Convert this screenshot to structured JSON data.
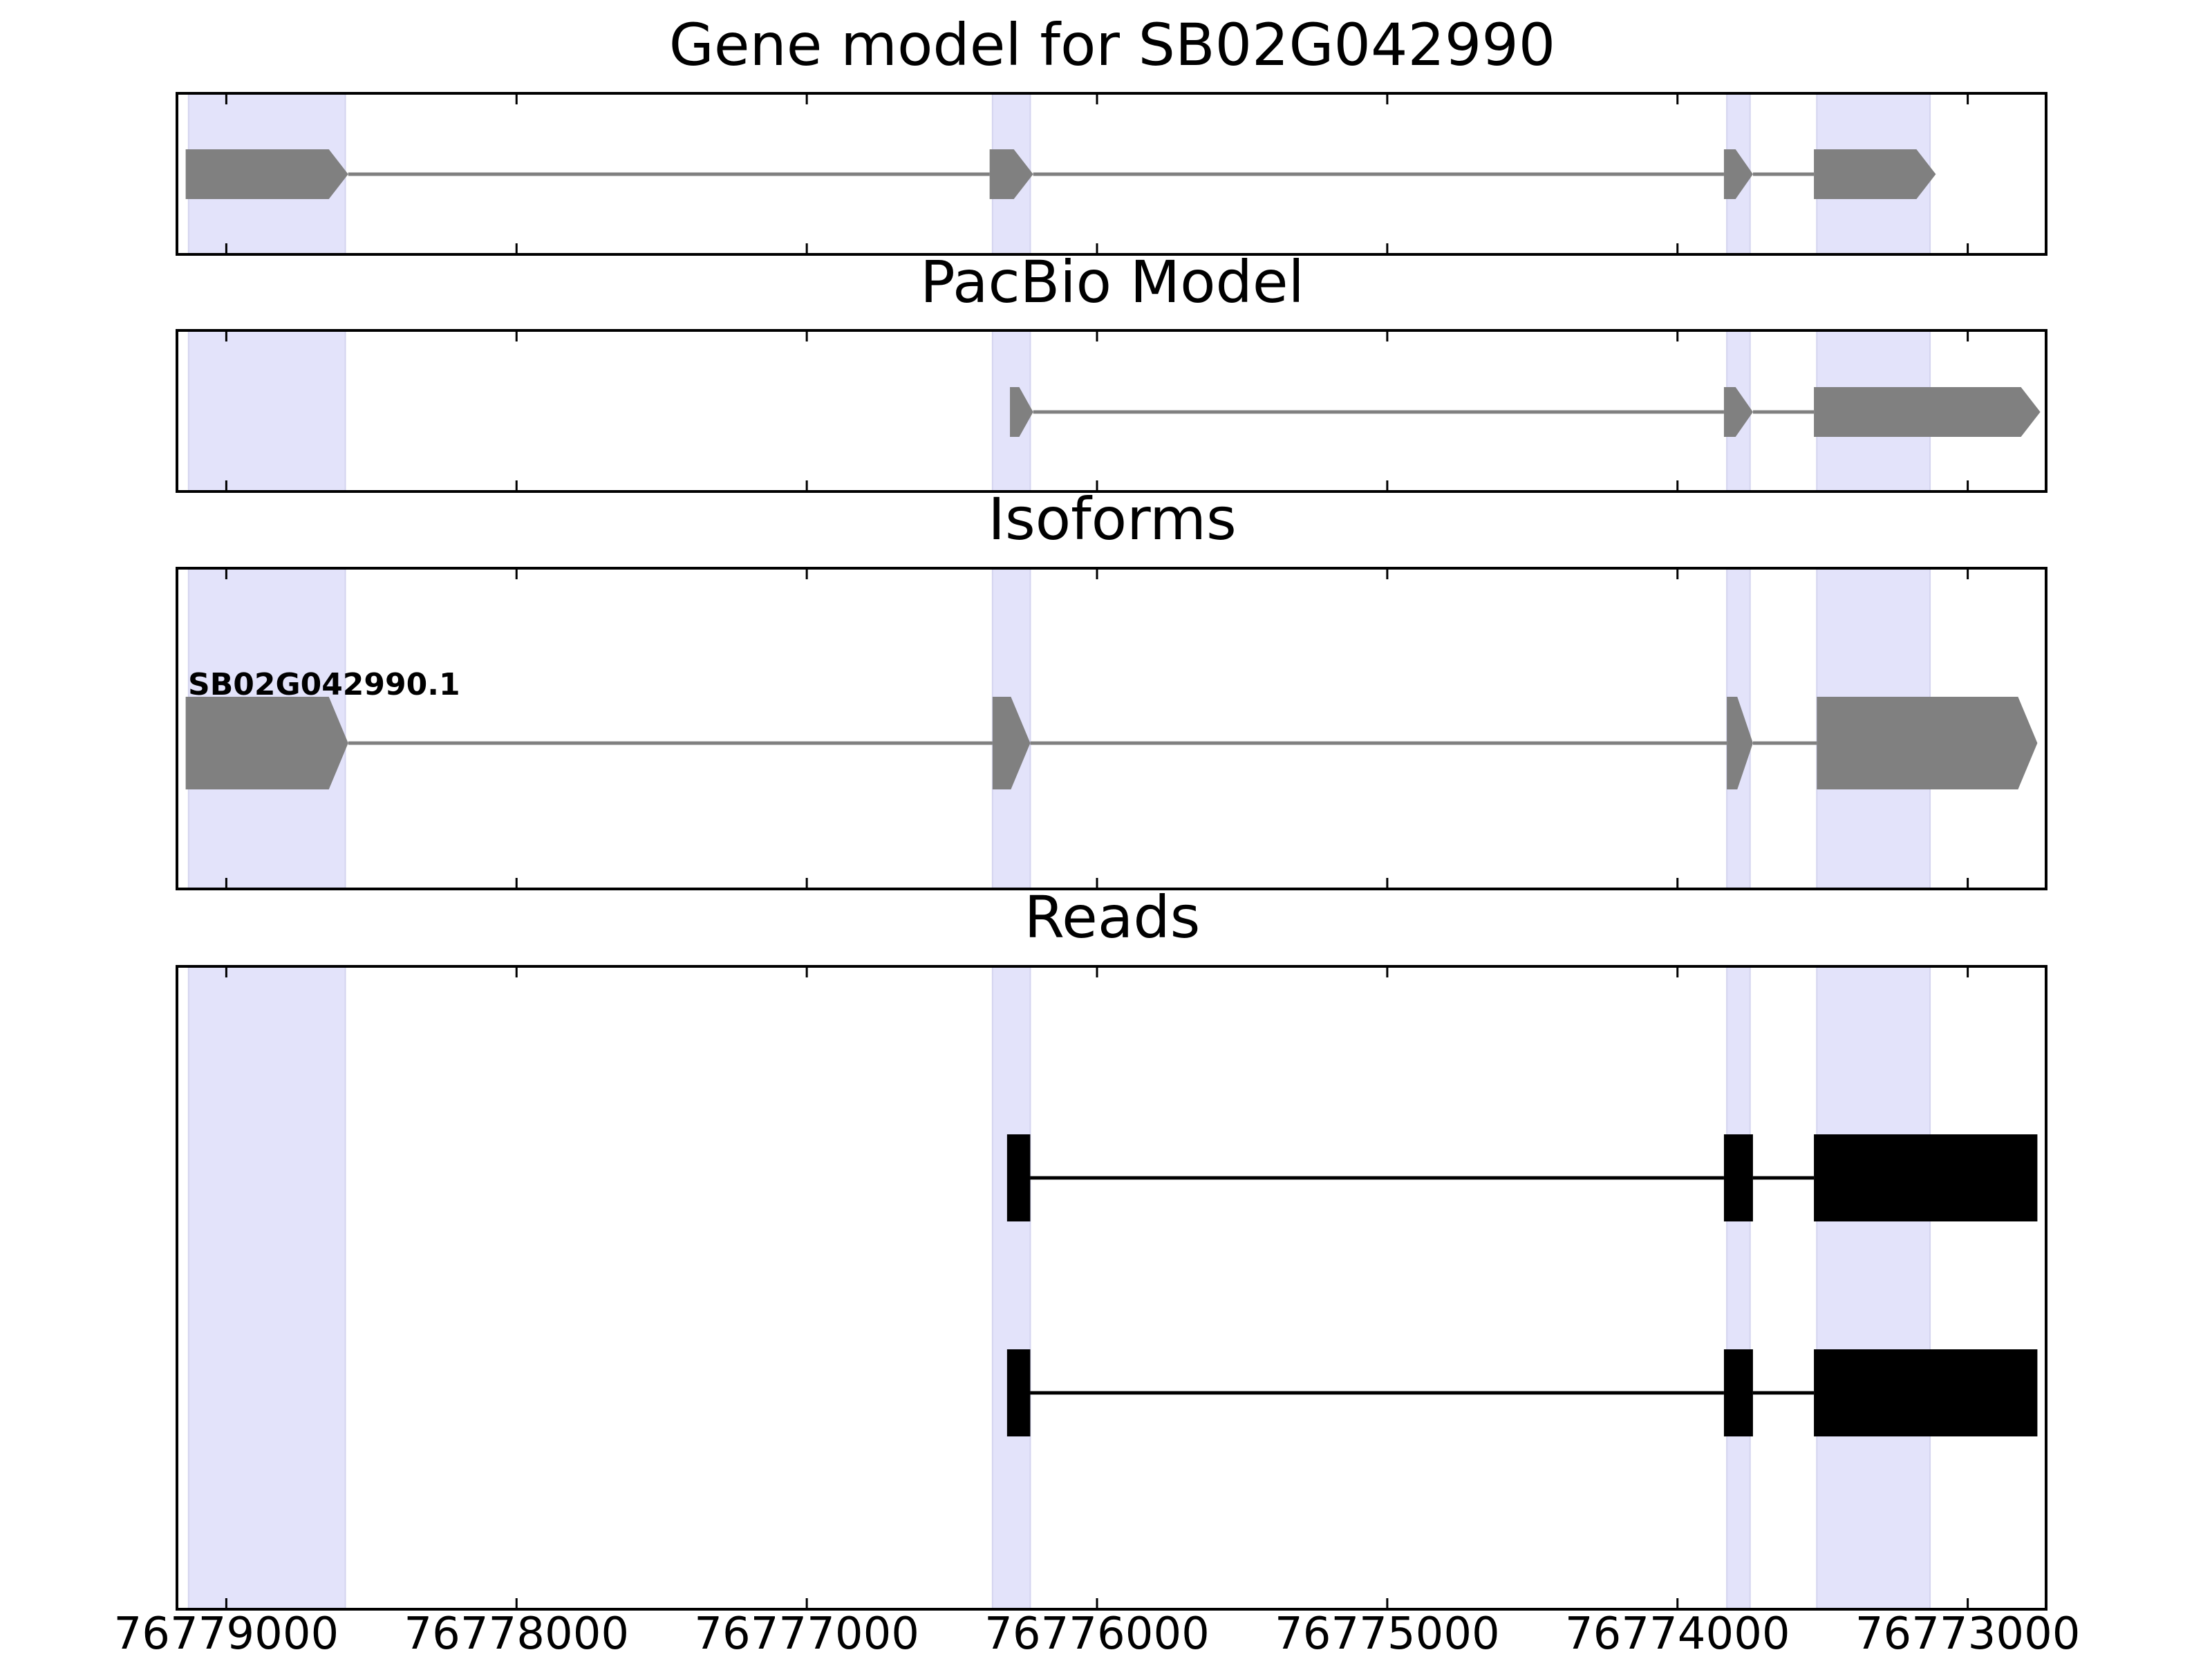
{
  "chart_data": {
    "type": "gene-model-tracks",
    "xaxis": {
      "reversed": true,
      "xlim": [
        76779170,
        76772730
      ],
      "ticks": [
        {
          "value": 76779000,
          "label": "76779000"
        },
        {
          "value": 76778000,
          "label": "76778000"
        },
        {
          "value": 76777000,
          "label": "76777000"
        },
        {
          "value": 76776000,
          "label": "76776000"
        },
        {
          "value": 76775000,
          "label": "76775000"
        },
        {
          "value": 76774000,
          "label": "76774000"
        },
        {
          "value": 76773000,
          "label": "76773000"
        }
      ]
    },
    "highlight_regions": [
      {
        "start": 76779130,
        "end": 76778590
      },
      {
        "start": 76776360,
        "end": 76776230
      },
      {
        "start": 76773830,
        "end": 76773750
      },
      {
        "start": 76773520,
        "end": 76773130
      }
    ],
    "panels": [
      {
        "title": "Gene model for SB02G042990",
        "features": [
          {
            "type": "gene",
            "color": "#808080",
            "exons": [
              [
                76779140,
                76778580
              ],
              [
                76776370,
                76776220
              ],
              [
                76773840,
                76773740
              ],
              [
                76773530,
                76773110
              ]
            ]
          }
        ]
      },
      {
        "title": "PacBio Model",
        "features": [
          {
            "type": "gene",
            "color": "#808080",
            "exons": [
              [
                76776300,
                76776220
              ],
              [
                76773840,
                76773740
              ],
              [
                76773530,
                76772750
              ]
            ]
          }
        ]
      },
      {
        "title": "Isoforms",
        "features": [
          {
            "type": "gene",
            "label": "SB02G042990.1",
            "color": "#808080",
            "exons": [
              [
                76779140,
                76778580
              ],
              [
                76776360,
                76776230
              ],
              [
                76773830,
                76773740
              ],
              [
                76773520,
                76772760
              ]
            ]
          }
        ]
      },
      {
        "title": "Reads",
        "features": [
          {
            "type": "read",
            "color": "#000000",
            "exons": [
              [
                76776310,
                76776230
              ],
              [
                76773840,
                76773740
              ],
              [
                76773530,
                76772760
              ]
            ]
          },
          {
            "type": "read",
            "color": "#000000",
            "exons": [
              [
                76776310,
                76776230
              ],
              [
                76773840,
                76773740
              ],
              [
                76773530,
                76772760
              ]
            ]
          }
        ]
      }
    ]
  }
}
